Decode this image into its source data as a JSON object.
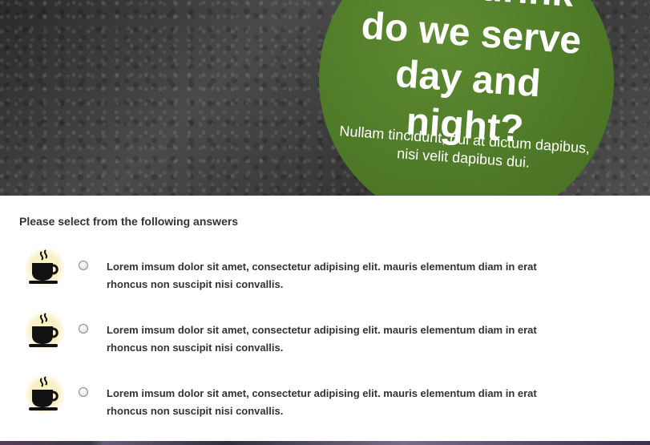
{
  "hero": {
    "title": "What drink do we serve day and night?",
    "subtitle": "Nullam tincidunt, dui at dictum dapibus, nisi velit dapibus dui."
  },
  "question": {
    "heading": "Please select from the following answers"
  },
  "answers": [
    {
      "text": "Lorem imsum dolor sit amet, consectetur adipising elit. mauris elementum diam in erat rhoncus non suscipit nisi convallis.",
      "icon": "coffee-cup-icon"
    },
    {
      "text": "Lorem imsum dolor sit amet, consectetur adipising elit. mauris elementum diam in erat rhoncus non suscipit nisi convallis.",
      "icon": "coffee-cup-icon"
    },
    {
      "text": "Lorem imsum dolor sit amet, consectetur adipising elit. mauris elementum diam in erat rhoncus non suscipit nisi convallis.",
      "icon": "coffee-cup-icon"
    }
  ],
  "colors": {
    "accent_green": "#4f7a28",
    "text_dark": "#333333",
    "hero_background": "#3b3b3b"
  }
}
